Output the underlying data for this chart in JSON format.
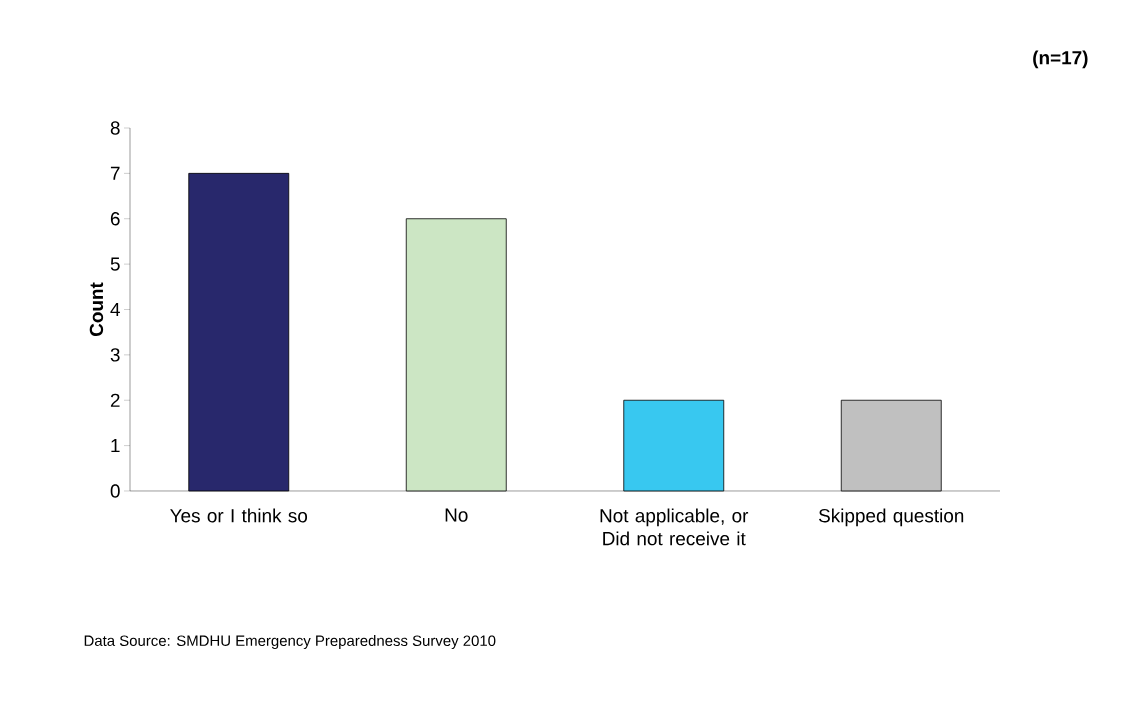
{
  "chart_data": {
    "type": "bar",
    "ylabel": "Count",
    "categories": [
      "Yes or I think so",
      "No",
      "Not applicable, or Did not receive it",
      "Skipped question"
    ],
    "values": [
      7,
      6,
      2,
      2
    ],
    "colors": [
      "#28286c",
      "#cce6c4",
      "#38c8f0",
      "#c0c0c0"
    ],
    "ylim": [
      0,
      8
    ],
    "yticks": [
      0,
      1,
      2,
      3,
      4,
      5,
      6,
      7,
      8
    ],
    "grid": false,
    "annotations": [
      "(n=17)",
      "Data Source: SMDHU Emergency Preparedness Survey 2010"
    ]
  }
}
